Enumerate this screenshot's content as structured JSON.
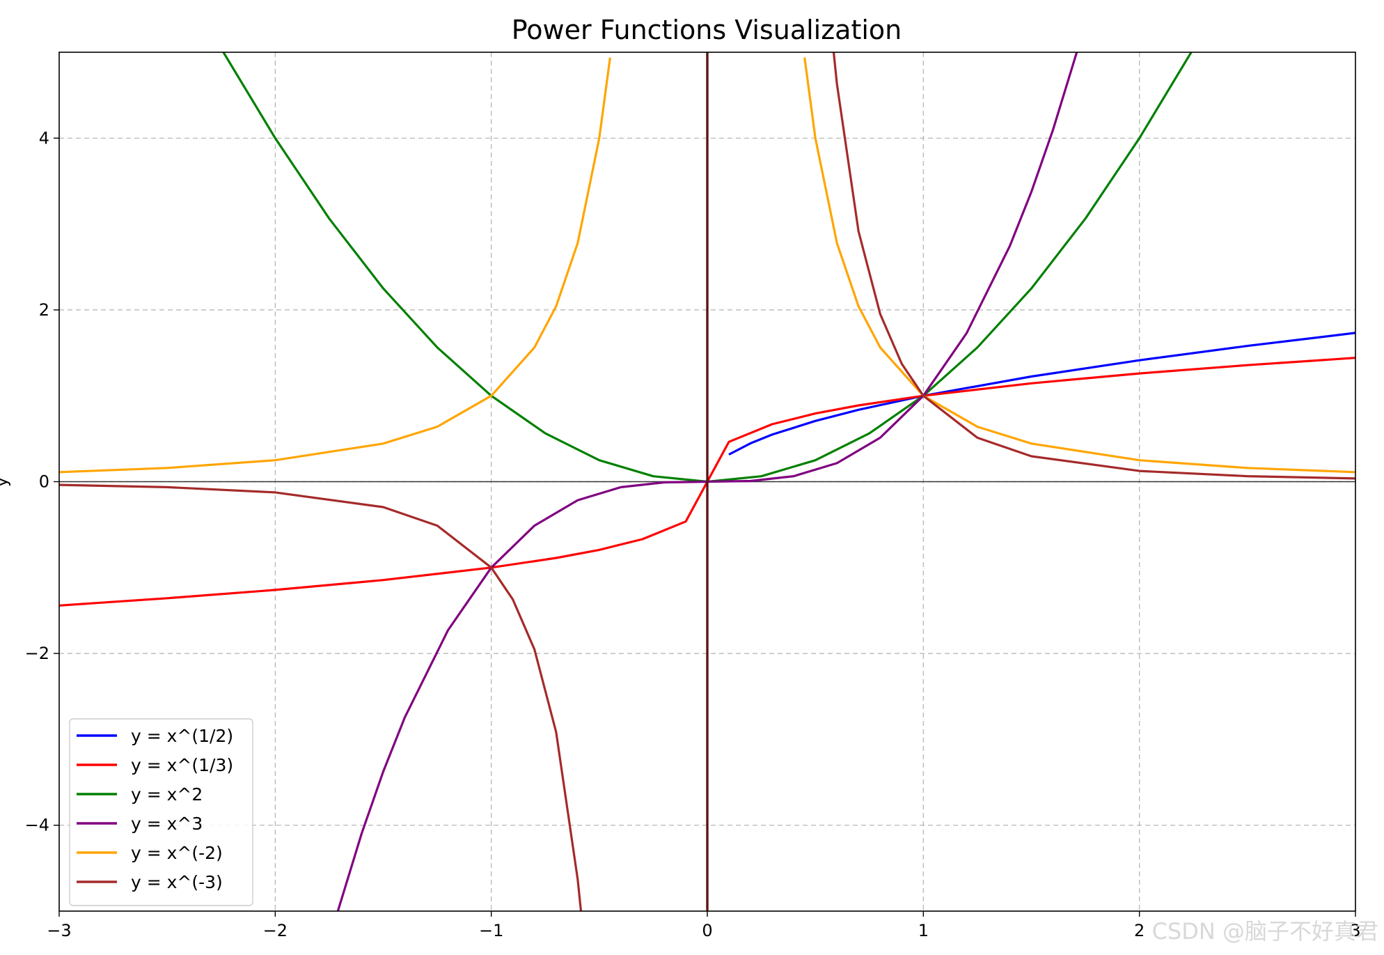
{
  "chart_data": {
    "type": "line",
    "title": "Power Functions Visualization",
    "xlabel": "",
    "ylabel": "y",
    "xlim": [
      -3,
      3
    ],
    "ylim": [
      -5,
      5
    ],
    "xticks": [
      -3,
      -2,
      -1,
      0,
      1,
      2,
      3
    ],
    "xtick_labels": [
      "−3",
      "−2",
      "−1",
      "0",
      "1",
      "2",
      "3"
    ],
    "yticks": [
      -4,
      -2,
      0,
      2,
      4
    ],
    "ytick_labels": [
      "−4",
      "−2",
      "0",
      "2",
      "4"
    ],
    "grid": true,
    "legend_position": "lower-left",
    "series": [
      {
        "name": "y = x^(1/2)",
        "color": "#0000ff",
        "x": [
          0.1,
          0.2,
          0.3,
          0.5,
          0.7,
          1.0,
          1.5,
          2.0,
          2.5,
          3.0
        ],
        "y": [
          0.316,
          0.447,
          0.548,
          0.707,
          0.837,
          1.0,
          1.225,
          1.414,
          1.581,
          1.732
        ]
      },
      {
        "name": "y = x^(1/3)",
        "color": "#ff0000",
        "x": [
          -3.0,
          -2.5,
          -2.0,
          -1.5,
          -1.0,
          -0.7,
          -0.5,
          -0.3,
          -0.1,
          0.0,
          0.1,
          0.3,
          0.5,
          0.7,
          1.0,
          1.5,
          2.0,
          2.5,
          3.0
        ],
        "y": [
          -1.442,
          -1.357,
          -1.26,
          -1.145,
          -1.0,
          -0.888,
          -0.794,
          -0.669,
          -0.464,
          0.0,
          0.464,
          0.669,
          0.794,
          0.888,
          1.0,
          1.145,
          1.26,
          1.357,
          1.442
        ]
      },
      {
        "name": "y = x^2",
        "color": "#008000",
        "x": [
          -2.24,
          -2.0,
          -1.75,
          -1.5,
          -1.25,
          -1.0,
          -0.75,
          -0.5,
          -0.25,
          0.0,
          0.25,
          0.5,
          0.75,
          1.0,
          1.25,
          1.5,
          1.75,
          2.0,
          2.24
        ],
        "y": [
          5.0,
          4.0,
          3.063,
          2.25,
          1.563,
          1.0,
          0.563,
          0.25,
          0.063,
          0.0,
          0.063,
          0.25,
          0.563,
          1.0,
          1.563,
          2.25,
          3.063,
          4.0,
          5.0
        ]
      },
      {
        "name": "y = x^3",
        "color": "#800080",
        "x": [
          -1.71,
          -1.6,
          -1.5,
          -1.4,
          -1.2,
          -1.0,
          -0.8,
          -0.6,
          -0.4,
          -0.2,
          0.0,
          0.2,
          0.4,
          0.6,
          0.8,
          1.0,
          1.2,
          1.4,
          1.5,
          1.6,
          1.71
        ],
        "y": [
          -5.0,
          -4.096,
          -3.375,
          -2.744,
          -1.728,
          -1.0,
          -0.512,
          -0.216,
          -0.064,
          -0.008,
          0.0,
          0.008,
          0.064,
          0.216,
          0.512,
          1.0,
          1.728,
          2.744,
          3.375,
          4.096,
          5.0
        ]
      },
      {
        "name": "y = x^(-2)",
        "color": "#ffa500",
        "x": [
          -3.0,
          -2.5,
          -2.0,
          -1.5,
          -1.25,
          -1.0,
          -0.8,
          -0.7,
          -0.6,
          -0.5,
          -0.45,
          null,
          0.45,
          0.5,
          0.6,
          0.7,
          0.8,
          1.0,
          1.25,
          1.5,
          2.0,
          2.5,
          3.0
        ],
        "y": [
          0.111,
          0.16,
          0.25,
          0.444,
          0.64,
          1.0,
          1.563,
          2.041,
          2.778,
          4.0,
          4.938,
          null,
          4.938,
          4.0,
          2.778,
          2.041,
          1.563,
          1.0,
          0.64,
          0.444,
          0.25,
          0.16,
          0.111
        ]
      },
      {
        "name": "y = x^(-3)",
        "color": "#a52a2a",
        "x": [
          -3.0,
          -2.5,
          -2.0,
          -1.5,
          -1.25,
          -1.0,
          -0.9,
          -0.8,
          -0.7,
          -0.6,
          -0.585,
          null,
          0.585,
          0.6,
          0.7,
          0.8,
          0.9,
          1.0,
          1.25,
          1.5,
          2.0,
          2.5,
          3.0
        ],
        "y": [
          -0.037,
          -0.064,
          -0.125,
          -0.296,
          -0.512,
          -1.0,
          -1.372,
          -1.953,
          -2.915,
          -4.63,
          -5.0,
          null,
          5.0,
          4.63,
          2.915,
          1.953,
          1.372,
          1.0,
          0.512,
          0.296,
          0.125,
          0.064,
          0.037
        ]
      }
    ]
  },
  "watermark": "CSDN @脑子不好真君"
}
